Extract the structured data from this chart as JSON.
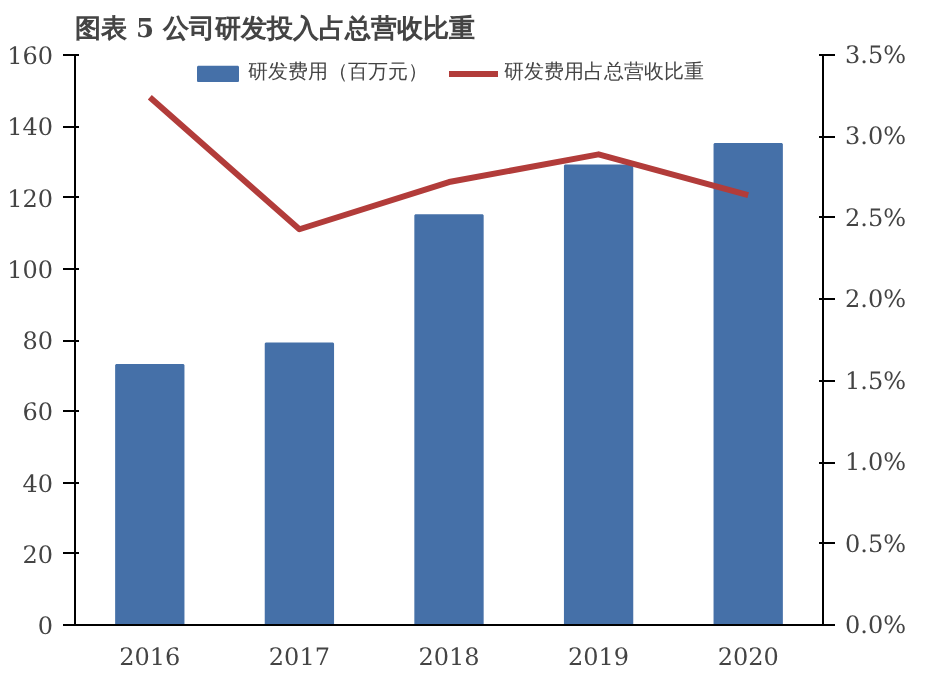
{
  "chart_data": {
    "type": "bar",
    "title": "图表 5 公司研发投入占总营收比重",
    "categories": [
      "2016",
      "2017",
      "2018",
      "2019",
      "2020"
    ],
    "series": [
      {
        "name": "研发费用（百万元）",
        "color": "#4570a8",
        "values": [
          73,
          79,
          115,
          129,
          135
        ]
      },
      {
        "name": "研发费用占总营收比重",
        "type": "line",
        "axis": "y2",
        "color": "#b23c3a",
        "values": [
          3.24,
          2.43,
          2.72,
          2.89,
          2.64
        ]
      }
    ],
    "ylim": [
      0,
      160
    ],
    "yticks": [
      0,
      20,
      40,
      60,
      80,
      100,
      120,
      140,
      160
    ],
    "y2lim": [
      0,
      3.5
    ],
    "y2ticks": [
      {
        "value": 0,
        "label": "0.0%"
      },
      {
        "value": 0.5,
        "label": "0.5%"
      },
      {
        "value": 1,
        "label": "1.0%"
      },
      {
        "value": 1.5,
        "label": "1.5%"
      },
      {
        "value": 2,
        "label": "2.0%"
      },
      {
        "value": 2.5,
        "label": "2.5%"
      },
      {
        "value": 3,
        "label": "3.0%"
      },
      {
        "value": 3.5,
        "label": "3.5%"
      }
    ],
    "grid": false,
    "legend": "top",
    "marker": "none"
  }
}
